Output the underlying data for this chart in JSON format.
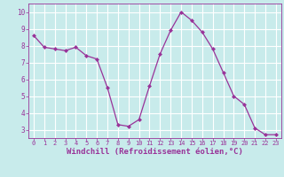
{
  "x": [
    0,
    1,
    2,
    3,
    4,
    5,
    6,
    7,
    8,
    9,
    10,
    11,
    12,
    13,
    14,
    15,
    16,
    17,
    18,
    19,
    20,
    21,
    22,
    23
  ],
  "y": [
    8.6,
    7.9,
    7.8,
    7.7,
    7.9,
    7.4,
    7.2,
    5.5,
    3.3,
    3.2,
    3.6,
    5.6,
    7.5,
    8.9,
    10.0,
    9.5,
    8.8,
    7.8,
    6.4,
    5.0,
    4.5,
    3.1,
    2.7,
    2.7
  ],
  "line_color": "#993399",
  "marker": "D",
  "markersize": 2.0,
  "linewidth": 0.9,
  "xlabel": "Windchill (Refroidissement éolien,°C)",
  "xlabel_fontsize": 6.5,
  "bg_color": "#c8ebeb",
  "plot_bg_color": "#c8ebeb",
  "grid_color": "#ffffff",
  "tick_color": "#993399",
  "label_color": "#993399",
  "xlim": [
    -0.5,
    23.5
  ],
  "ylim": [
    2.5,
    10.5
  ],
  "yticks": [
    3,
    4,
    5,
    6,
    7,
    8,
    9,
    10
  ],
  "xticks": [
    0,
    1,
    2,
    3,
    4,
    5,
    6,
    7,
    8,
    9,
    10,
    11,
    12,
    13,
    14,
    15,
    16,
    17,
    18,
    19,
    20,
    21,
    22,
    23
  ],
  "tick_fontsize_x": 5.0,
  "tick_fontsize_y": 5.5
}
